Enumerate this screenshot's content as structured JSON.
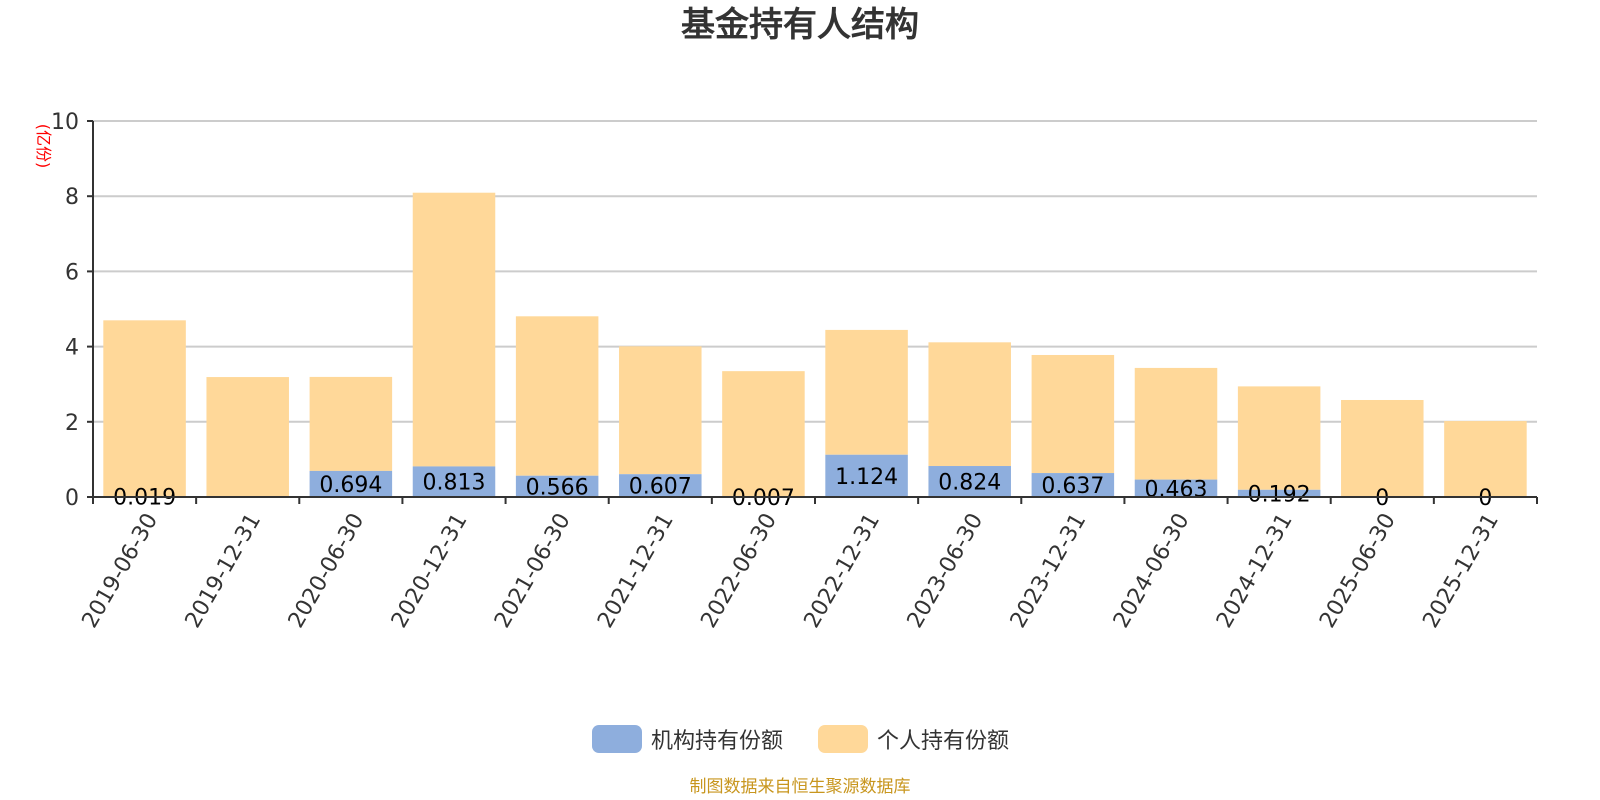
{
  "chart_data": {
    "type": "bar",
    "stacked": true,
    "title": "基金持有人结构",
    "ylabel": "(亿份)",
    "xlabel": "",
    "ylim": [
      0,
      10
    ],
    "yticks": [
      0,
      2,
      4,
      6,
      8,
      10
    ],
    "grid": true,
    "legend_position": "bottom",
    "categories": [
      "2019-06-30",
      "2019-12-31",
      "2020-06-30",
      "2020-12-31",
      "2021-06-30",
      "2021-12-31",
      "2022-06-30",
      "2022-12-31",
      "2023-06-30",
      "2023-12-31",
      "2024-06-30",
      "2024-12-31",
      "2025-06-30",
      "2025-12-31"
    ],
    "series": [
      {
        "name": "机构持有份额",
        "color": "#8eaedd",
        "values": [
          0.019,
          0,
          0.694,
          0.813,
          0.566,
          0.607,
          0.007,
          1.124,
          0.824,
          0.637,
          0.463,
          0.192,
          0,
          0
        ],
        "labels": [
          "0.019",
          "",
          "0.694",
          "0.813",
          "0.566",
          "0.607",
          "0.007",
          "1.124",
          "0.824",
          "0.637",
          "0.463",
          "0.192",
          "0",
          "0"
        ]
      },
      {
        "name": "个人持有份额",
        "color": "#ffd899",
        "values": [
          4.68,
          3.19,
          2.5,
          7.28,
          4.24,
          3.4,
          3.34,
          3.32,
          3.29,
          3.14,
          2.97,
          2.75,
          2.58,
          2.02
        ]
      }
    ],
    "source_note": "制图数据来自恒生聚源数据库"
  }
}
